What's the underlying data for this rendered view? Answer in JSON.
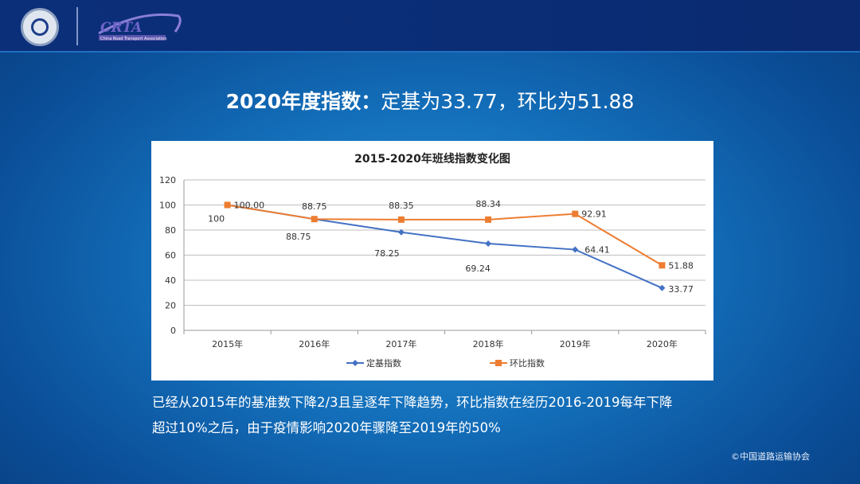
{
  "header": {
    "logo_left": "seal-emblem",
    "logo_right_text": "CRTA",
    "logo_right_subtitle": "China Road Transport Association"
  },
  "title": {
    "bold": "2020年度指数：",
    "rest": "定基为33.77，环比为51.88"
  },
  "chart_data": {
    "type": "line",
    "title": "2015-2020年班线指数变化图",
    "categories": [
      "2015年",
      "2016年",
      "2017年",
      "2018年",
      "2019年",
      "2020年"
    ],
    "ylim": [
      0,
      120
    ],
    "yticks": [
      0,
      20,
      40,
      60,
      80,
      100,
      120
    ],
    "grid": true,
    "legend_position": "bottom",
    "series": [
      {
        "name": "定基指数",
        "values": [
          100,
          88.75,
          78.25,
          69.24,
          64.41,
          33.77
        ],
        "labels": [
          "100",
          "88.75",
          "78.25",
          "69.24",
          "64.41",
          "33.77"
        ],
        "color": "#4472c4",
        "marker": "diamond"
      },
      {
        "name": "环比指数",
        "values": [
          100.0,
          88.75,
          88.35,
          88.34,
          92.91,
          51.88
        ],
        "labels": [
          "100.00",
          "88.75",
          "88.35",
          "88.34",
          "92.91",
          "51.88"
        ],
        "color": "#ed7d31",
        "marker": "square"
      }
    ]
  },
  "body_text": [
    "已经从2015年的基准数下降2/3且呈逐年下降趋势，环比指数在经历2016-2019每年下降",
    "超过10%之后，由于疫情影响2020年骤降至2019年的50%"
  ],
  "copyright": "©中国道路运输协会"
}
